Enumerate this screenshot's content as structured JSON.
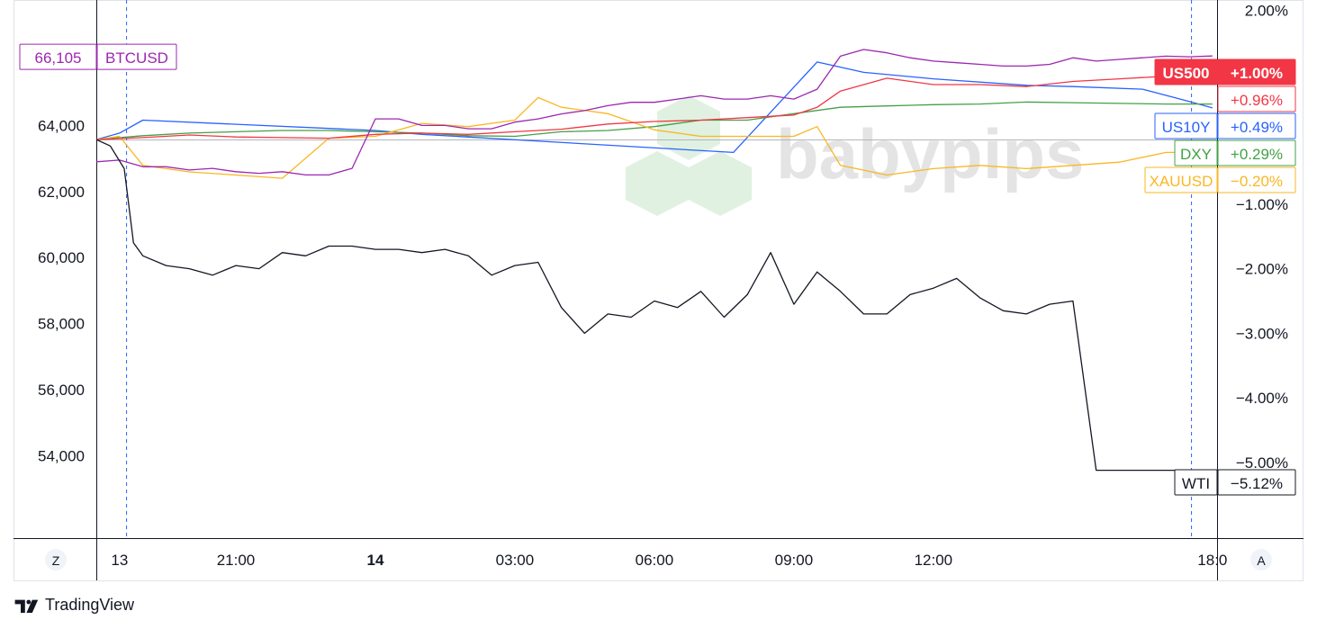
{
  "footer": {
    "brand": "TradingView"
  },
  "watermark": {
    "text": "babypips"
  },
  "axis_buttons": {
    "left": "Z",
    "right": "A"
  },
  "chart_data": {
    "type": "line",
    "title": "",
    "xlabel": "",
    "ylabel": "",
    "x_ticks": [
      {
        "label": "13",
        "t": 0.5,
        "bold": false
      },
      {
        "label": "21:00",
        "t": 3,
        "bold": false
      },
      {
        "label": "14",
        "t": 6,
        "bold": true
      },
      {
        "label": "03:00",
        "t": 9,
        "bold": false
      },
      {
        "label": "06:00",
        "t": 12,
        "bold": false
      },
      {
        "label": "09:00",
        "t": 15,
        "bold": false
      },
      {
        "label": "12:00",
        "t": 18,
        "bold": false
      },
      {
        "label": "18:0",
        "t": 24,
        "bold": false
      }
    ],
    "left_axis": {
      "ticks": [
        54000,
        56000,
        58000,
        60000,
        62000,
        64000
      ],
      "labels": [
        "54,000",
        "56,000",
        "58,000",
        "60,000",
        "62,000",
        "64,000"
      ],
      "range": [
        51500,
        67800
      ],
      "current_value_label": "66,105",
      "current_symbol": "BTCUSD",
      "color": "#9c27b0"
    },
    "right_axis": {
      "ticks": [
        2.0,
        -1.0,
        -2.0,
        -3.0,
        -4.0,
        -5.0
      ],
      "labels": [
        "2.00%",
        "−1.00%",
        "−2.00%",
        "−3.00%",
        "−4.00%",
        "−5.00%"
      ],
      "range": [
        -6.17,
        2.16
      ]
    },
    "vertical_dashes_t": [
      0.65,
      23.55
    ],
    "series": [
      {
        "name": "BTCUSD",
        "axis": "left",
        "color": "#9c27b0",
        "tag_label": null,
        "tag_value": null,
        "x": [
          0,
          0.5,
          1,
          1.5,
          2,
          2.5,
          3,
          3.5,
          4,
          4.5,
          5,
          5.5,
          6,
          6.5,
          7,
          7.5,
          8,
          8.5,
          9,
          9.5,
          10,
          10.5,
          11,
          11.5,
          12,
          12.5,
          13,
          13.5,
          14,
          14.5,
          15,
          15.5,
          16,
          16.5,
          17,
          17.5,
          18,
          18.5,
          19,
          19.5,
          20,
          20.5,
          21,
          21.5,
          22,
          22.5,
          23,
          23.5,
          24
        ],
        "values": [
          62900,
          62950,
          62750,
          62750,
          62650,
          62700,
          62600,
          62550,
          62600,
          62500,
          62500,
          62700,
          64200,
          64200,
          64000,
          64000,
          63900,
          63900,
          64100,
          64200,
          64350,
          64450,
          64600,
          64700,
          64700,
          64800,
          64900,
          64800,
          64800,
          64900,
          64800,
          65100,
          66100,
          66300,
          66200,
          66050,
          65950,
          65900,
          65850,
          65800,
          65800,
          65850,
          66050,
          65950,
          66000,
          66050,
          66100,
          66080,
          66105
        ]
      },
      {
        "name": "US500",
        "axis": "right",
        "color": "#f23645",
        "tag_label": "US500",
        "tag_value": "+1.00%",
        "tag_filled": true,
        "x": [
          0,
          1,
          2,
          3,
          4,
          5,
          6,
          7,
          8,
          9,
          10,
          11,
          12,
          13,
          14,
          15,
          15.5,
          16,
          17,
          18,
          19,
          20,
          21,
          22,
          23,
          24
        ],
        "values": [
          0,
          0.03,
          0.07,
          0.04,
          0.03,
          0.02,
          0.08,
          0.1,
          0.08,
          0.12,
          0.16,
          0.24,
          0.28,
          0.3,
          0.34,
          0.38,
          0.5,
          0.75,
          0.95,
          0.85,
          0.85,
          0.82,
          0.9,
          0.94,
          0.98,
          1.0
        ]
      },
      {
        "name": "US10Y",
        "axis": "right",
        "color": "#2962ff",
        "tag_label": "US10Y",
        "tag_value": "+0.49%",
        "tag_filled": false,
        "x": [
          0,
          0.5,
          1,
          6,
          7,
          13.7,
          15.5,
          16.5,
          18,
          20,
          21,
          22.5,
          23.5,
          24
        ],
        "values": [
          0,
          0.1,
          0.3,
          0.14,
          0.08,
          -0.2,
          1.2,
          1.04,
          0.94,
          0.84,
          0.82,
          0.78,
          0.59,
          0.49
        ]
      },
      {
        "name": "DXY",
        "axis": "right",
        "color": "#43a047",
        "tag_label": "DXY",
        "tag_value": "+0.29%",
        "tag_filled": false,
        "x": [
          0,
          1,
          2,
          3,
          4,
          5,
          6,
          7,
          8,
          9,
          10,
          11,
          12,
          13,
          14,
          15,
          16,
          17,
          18,
          19,
          20,
          21,
          22,
          23,
          24
        ],
        "values": [
          0,
          0.06,
          0.1,
          0.12,
          0.14,
          0.14,
          0.12,
          0.1,
          0.06,
          0.05,
          0.12,
          0.14,
          0.2,
          0.3,
          0.3,
          0.4,
          0.5,
          0.52,
          0.54,
          0.55,
          0.58,
          0.57,
          0.56,
          0.55,
          0.55
        ]
      },
      {
        "name": "XAUUSD",
        "axis": "right",
        "color": "#f9b723",
        "tag_label": "XAUUSD",
        "tag_value": "−0.20%",
        "tag_filled": false,
        "x": [
          0,
          0.5,
          1,
          2,
          3,
          4,
          5,
          6,
          7,
          8,
          9,
          9.5,
          10,
          11,
          12,
          13,
          14,
          15,
          15.5,
          16,
          17,
          18,
          19,
          20,
          21,
          22,
          23,
          24
        ],
        "values": [
          0,
          0.05,
          -0.4,
          -0.5,
          -0.55,
          -0.6,
          0.02,
          0.05,
          0.25,
          0.2,
          0.3,
          0.65,
          0.5,
          0.4,
          0.15,
          0.05,
          0.05,
          0.05,
          0.2,
          -0.4,
          -0.55,
          -0.45,
          -0.4,
          -0.45,
          -0.4,
          -0.35,
          -0.2,
          -0.2
        ]
      },
      {
        "name": "WTI",
        "axis": "right",
        "color": "#131722",
        "tag_label": "WTI",
        "tag_value": "−5.12%",
        "tag_filled": false,
        "x": [
          0,
          0.3,
          0.6,
          0.8,
          1,
          1.5,
          2,
          2.5,
          3,
          3.5,
          4,
          4.5,
          5,
          5.5,
          6,
          6.5,
          7,
          7.5,
          8,
          8.5,
          9,
          9.5,
          10,
          10.5,
          11,
          11.5,
          12,
          12.5,
          13,
          13.5,
          14,
          14.5,
          15,
          15.5,
          16,
          16.5,
          17,
          17.5,
          18,
          18.5,
          19,
          19.5,
          20,
          20.5,
          21,
          21.5,
          22,
          22.5,
          23,
          23.3,
          23.6,
          23.8
        ],
        "values": [
          0,
          -0.1,
          -0.45,
          -1.6,
          -1.8,
          -1.95,
          -2.0,
          -2.1,
          -1.95,
          -2.0,
          -1.75,
          -1.8,
          -1.65,
          -1.65,
          -1.7,
          -1.7,
          -1.75,
          -1.7,
          -1.8,
          -2.1,
          -1.95,
          -1.9,
          -2.6,
          -3.0,
          -2.7,
          -2.75,
          -2.5,
          -2.6,
          -2.35,
          -2.75,
          -2.4,
          -1.75,
          -2.55,
          -2.05,
          -2.35,
          -2.7,
          -2.7,
          -2.4,
          -2.3,
          -2.15,
          -2.45,
          -2.65,
          -2.7,
          -2.55,
          -2.5,
          -5.12,
          -5.12,
          -5.12,
          -5.12,
          -5.12,
          -5.12,
          -5.12
        ]
      }
    ]
  }
}
